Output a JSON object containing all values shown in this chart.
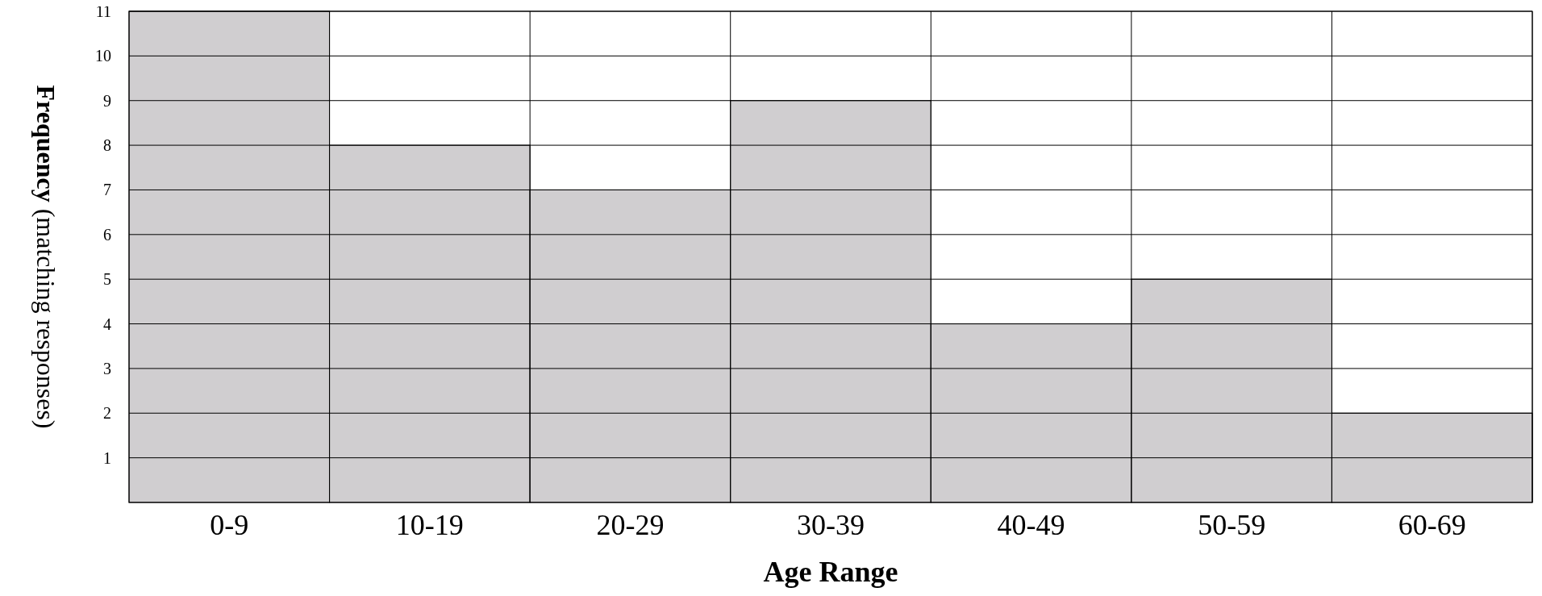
{
  "chart_data": {
    "type": "bar",
    "xlabel": "Age Range",
    "ylabel": "Frequency (matching responses)",
    "categories": [
      "0-9",
      "10-19",
      "20-29",
      "30-39",
      "40-49",
      "50-59",
      "60-69"
    ],
    "values": [
      11,
      8,
      7,
      9,
      4,
      5,
      2
    ],
    "color": "#d0ced0",
    "ylim": [
      0,
      11
    ],
    "yticks": [
      1,
      2,
      3,
      4,
      5,
      6,
      7,
      8,
      9,
      10,
      11
    ],
    "grid": true
  }
}
